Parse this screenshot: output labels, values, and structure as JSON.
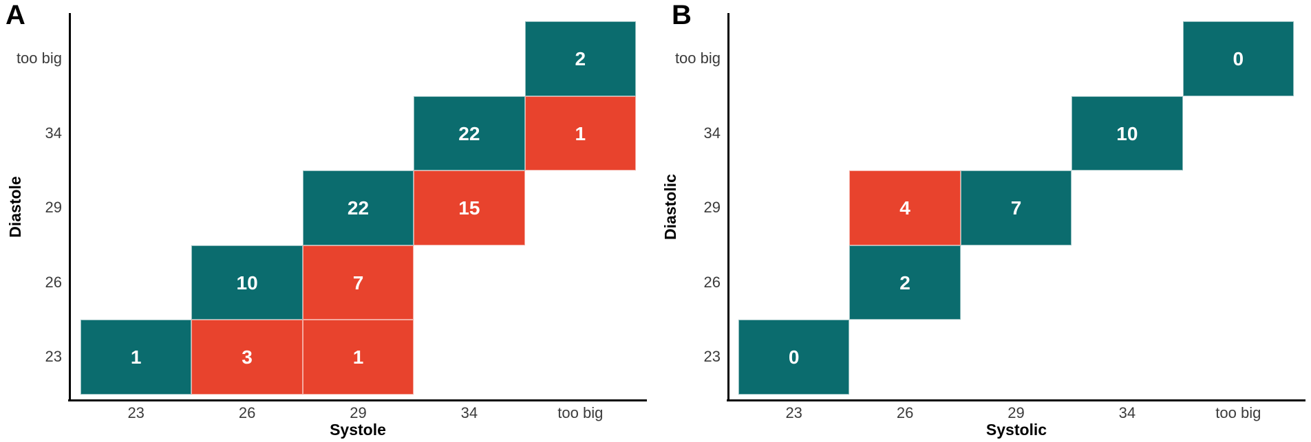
{
  "chart_data": [
    {
      "type": "heatmap",
      "panel_label": "A",
      "xlabel": "Systole",
      "ylabel": "Diastole",
      "x_categories": [
        "23",
        "26",
        "29",
        "34",
        "too big"
      ],
      "y_categories": [
        "23",
        "26",
        "29",
        "34",
        "too big"
      ],
      "legend": "none",
      "grid": false,
      "cells": [
        {
          "x": "23",
          "y": "23",
          "value": 1,
          "color_key": "agreement_teal"
        },
        {
          "x": "26",
          "y": "23",
          "value": 3,
          "color_key": "disagreement_red"
        },
        {
          "x": "29",
          "y": "23",
          "value": 1,
          "color_key": "disagreement_red"
        },
        {
          "x": "26",
          "y": "26",
          "value": 10,
          "color_key": "agreement_teal"
        },
        {
          "x": "29",
          "y": "26",
          "value": 7,
          "color_key": "disagreement_red"
        },
        {
          "x": "29",
          "y": "29",
          "value": 22,
          "color_key": "agreement_teal"
        },
        {
          "x": "34",
          "y": "29",
          "value": 15,
          "color_key": "disagreement_red"
        },
        {
          "x": "34",
          "y": "34",
          "value": 22,
          "color_key": "agreement_teal"
        },
        {
          "x": "too big",
          "y": "34",
          "value": 1,
          "color_key": "disagreement_red"
        },
        {
          "x": "too big",
          "y": "too big",
          "value": 2,
          "color_key": "agreement_teal"
        }
      ]
    },
    {
      "type": "heatmap",
      "panel_label": "B",
      "xlabel": "Systolic",
      "ylabel": "Diastolic",
      "x_categories": [
        "23",
        "26",
        "29",
        "34",
        "too big"
      ],
      "y_categories": [
        "23",
        "26",
        "29",
        "34",
        "too big"
      ],
      "legend": "none",
      "grid": false,
      "cells": [
        {
          "x": "23",
          "y": "23",
          "value": 0,
          "color_key": "agreement_teal"
        },
        {
          "x": "26",
          "y": "26",
          "value": 2,
          "color_key": "agreement_teal"
        },
        {
          "x": "26",
          "y": "29",
          "value": 4,
          "color_key": "disagreement_red"
        },
        {
          "x": "29",
          "y": "29",
          "value": 7,
          "color_key": "agreement_teal"
        },
        {
          "x": "34",
          "y": "34",
          "value": 10,
          "color_key": "agreement_teal"
        },
        {
          "x": "too big",
          "y": "too big",
          "value": 0,
          "color_key": "agreement_teal"
        }
      ]
    }
  ],
  "colors": {
    "agreement_teal": "#0B6C6E",
    "disagreement_red": "#E8432D",
    "axis_line": "#000000",
    "tick_label": "#3A3A3A",
    "cell_value_text": "#FFFFFF"
  }
}
